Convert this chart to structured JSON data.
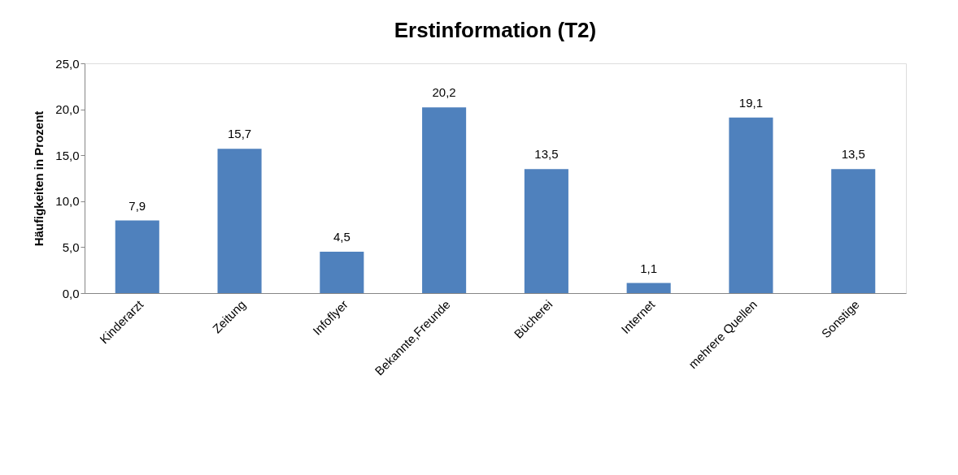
{
  "chart_data": {
    "type": "bar",
    "title": "Erstinformation (T2)",
    "ylabel": "Häufigkeiten in Prozent",
    "categories": [
      "Kinderarzt",
      "Zeitung",
      "Infoflyer",
      "Bekannte,Freunde",
      "Bücherei",
      "Internet",
      "mehrere Quellen",
      "Sonstige"
    ],
    "values": [
      7.9,
      15.7,
      4.5,
      20.2,
      13.5,
      1.1,
      19.1,
      13.5
    ],
    "value_labels": [
      "7,9",
      "15,7",
      "4,5",
      "20,2",
      "13,5",
      "1,1",
      "19,1",
      "13,5"
    ],
    "color": "#4f81bd",
    "ylim": [
      0,
      25
    ],
    "yticks": [
      {
        "value": 0,
        "label": "0,0"
      },
      {
        "value": 5,
        "label": "5,0"
      },
      {
        "value": 10,
        "label": "10,0"
      },
      {
        "value": 15,
        "label": "15,0"
      },
      {
        "value": 20,
        "label": "20,0"
      },
      {
        "value": 25,
        "label": "25,0"
      }
    ],
    "grid": false
  }
}
